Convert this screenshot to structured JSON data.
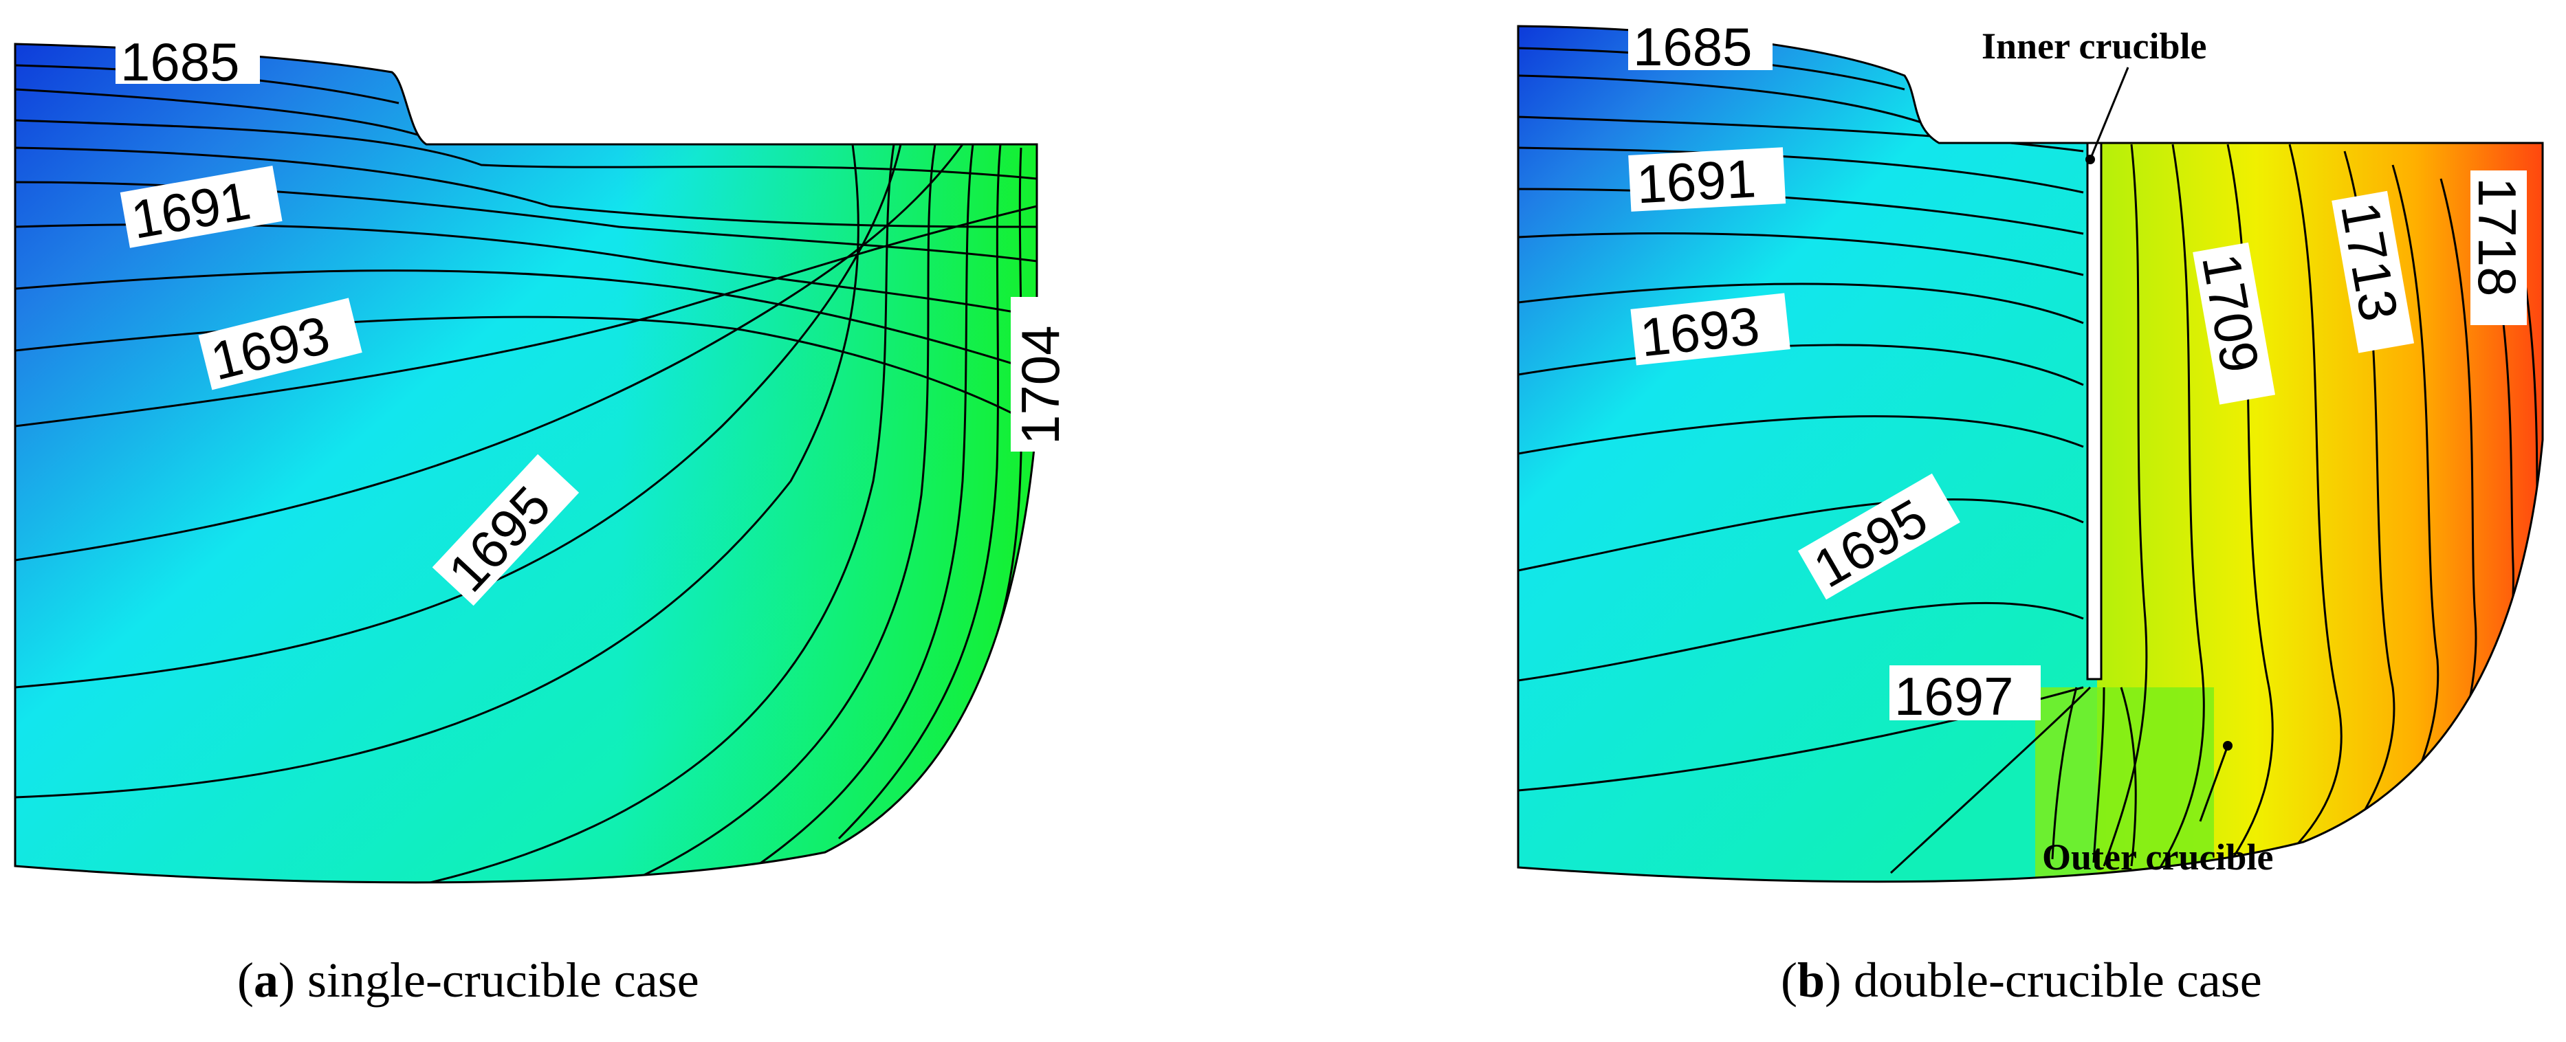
{
  "panels": [
    {
      "id": "a",
      "caption": {
        "open": "(",
        "letter": "a",
        "close": ")",
        "text": " single-crucible case"
      },
      "contour_labels": [
        "1685",
        "1691",
        "1693",
        "1695",
        "1704"
      ]
    },
    {
      "id": "b",
      "caption": {
        "open": "(",
        "letter": "b",
        "close": ")",
        "text": " double-crucible case"
      },
      "contour_labels": [
        "1685",
        "1691",
        "1693",
        "1695",
        "1697",
        "1709",
        "1713",
        "1718"
      ],
      "annotations": {
        "inner": "Inner crucible",
        "outer": "Outer crucible"
      }
    }
  ],
  "colors": {
    "deep_blue": "#0a2fd8",
    "blue": "#1f7fe6",
    "cyan": "#12e6ee",
    "teal": "#10f0b8",
    "green": "#10ee5a",
    "bright_green": "#14f028",
    "yellow_green": "#b4f00a",
    "yellow": "#f0f000",
    "orange": "#ffb000",
    "red_orange": "#ff4010"
  }
}
